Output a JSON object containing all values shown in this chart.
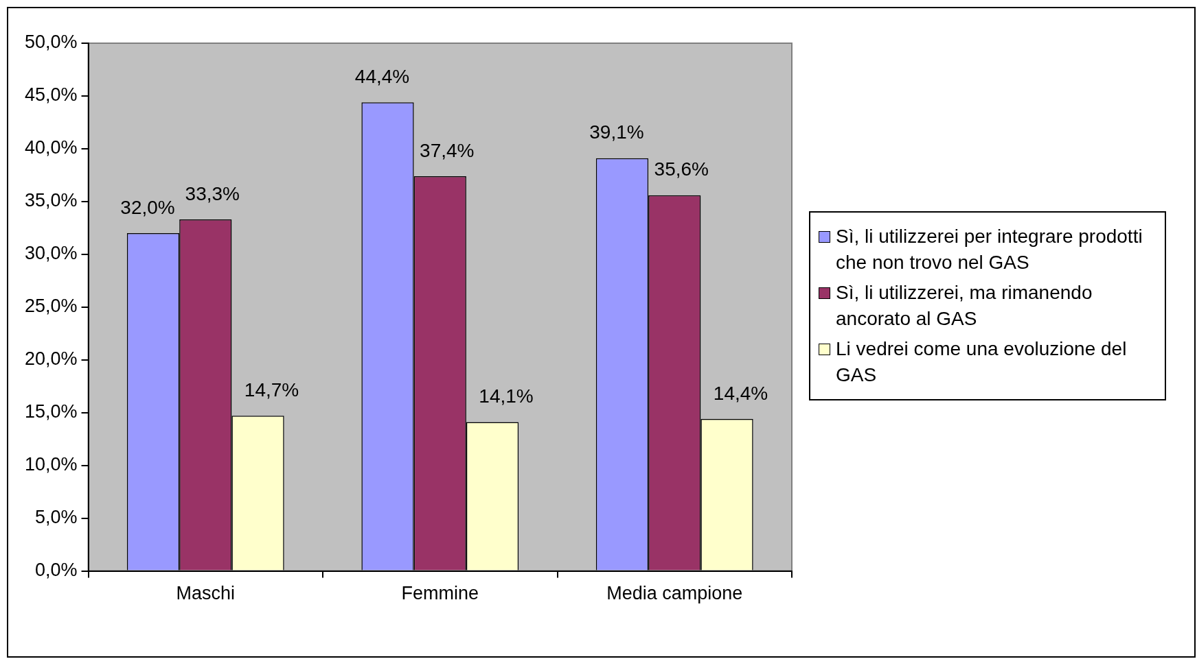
{
  "chart_data": {
    "type": "bar",
    "categories": [
      "Maschi",
      "Femmine",
      "Media campione"
    ],
    "series": [
      {
        "name": "Sì, li utilizzerei per integrare prodotti che non trovo nel GAS",
        "color": "#9999ff",
        "values": [
          32.0,
          44.4,
          39.1
        ],
        "value_labels": [
          "32,0%",
          "44,4%",
          "39,1%"
        ]
      },
      {
        "name": "Sì, li utilizzerei, ma rimanendo ancorato al GAS",
        "color": "#993366",
        "values": [
          33.3,
          37.4,
          35.6
        ],
        "value_labels": [
          "33,3%",
          "37,4%",
          "35,6%"
        ]
      },
      {
        "name": "Li vedrei come una evoluzione del GAS",
        "color": "#ffffcc",
        "values": [
          14.7,
          14.1,
          14.4
        ],
        "value_labels": [
          "14,7%",
          "14,1%",
          "14,4%"
        ]
      }
    ],
    "ylim": [
      0,
      50
    ],
    "yticks": [
      {
        "value": 0,
        "label": "0,0%"
      },
      {
        "value": 5,
        "label": "5,0%"
      },
      {
        "value": 10,
        "label": "10,0%"
      },
      {
        "value": 15,
        "label": "15,0%"
      },
      {
        "value": 20,
        "label": "20,0%"
      },
      {
        "value": 25,
        "label": "25,0%"
      },
      {
        "value": 30,
        "label": "30,0%"
      },
      {
        "value": 35,
        "label": "35,0%"
      },
      {
        "value": 40,
        "label": "40,0%"
      },
      {
        "value": 45,
        "label": "45,0%"
      },
      {
        "value": 50,
        "label": "50,0%"
      }
    ],
    "grid": false,
    "legend": "right"
  }
}
